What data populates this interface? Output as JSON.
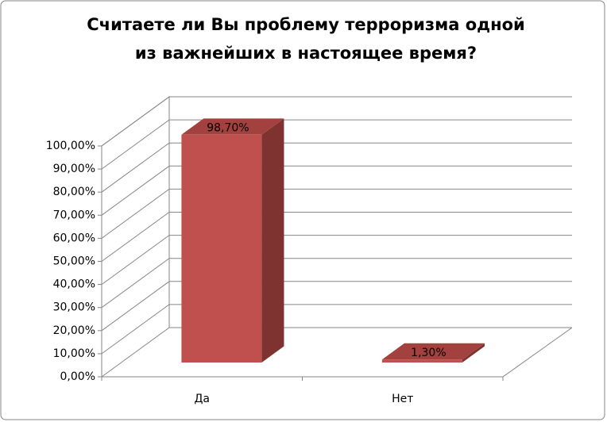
{
  "chart_data": {
    "type": "bar3d",
    "title": [
      "Считаете ли Вы проблему терроризма одной",
      "из важнейших в настоящее время?"
    ],
    "categories": [
      "Да",
      "Нет"
    ],
    "values": [
      98.7,
      1.3
    ],
    "value_labels": [
      "98,70%",
      "1,30%"
    ],
    "color": "#c0504d",
    "ylim": [
      0,
      100
    ],
    "yticks": [
      {
        "value": 0,
        "label": "0,00%"
      },
      {
        "value": 10,
        "label": "10,00%"
      },
      {
        "value": 20,
        "label": "20,00%"
      },
      {
        "value": 30,
        "label": "30,00%"
      },
      {
        "value": 40,
        "label": "40,00%"
      },
      {
        "value": 50,
        "label": "50,00%"
      },
      {
        "value": 60,
        "label": "60,00%"
      },
      {
        "value": 70,
        "label": "70,00%"
      },
      {
        "value": 80,
        "label": "80,00%"
      },
      {
        "value": 90,
        "label": "90,00%"
      },
      {
        "value": 100,
        "label": "100,00%"
      }
    ],
    "grid": true
  }
}
